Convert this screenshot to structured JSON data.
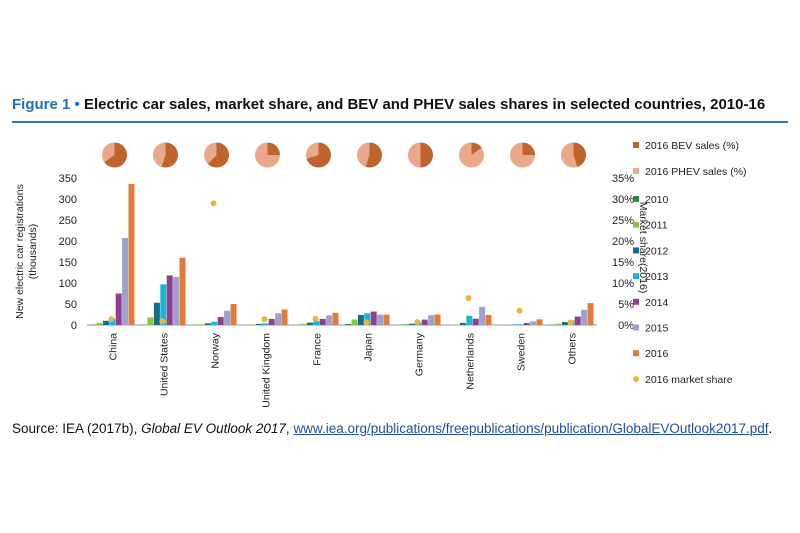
{
  "figure": {
    "label": "Figure 1",
    "bullet": "•",
    "title": "Electric car sales, market share, and BEV and PHEV sales shares in selected countries, 2010-16"
  },
  "source": {
    "prefix": "Source: IEA (2017b), ",
    "book": "Global EV Outlook 2017",
    "sep": ", ",
    "url": "www.iea.org/publications/freepublications/publication/GlobalEVOutlook2017.pdf",
    "end": "."
  },
  "chart_data": {
    "type": "bar",
    "categories": [
      "China",
      "United States",
      "Norway",
      "United Kingdom",
      "France",
      "Japan",
      "Germany",
      "Netherlands",
      "Sweden",
      "Others"
    ],
    "ylabel": "New electric car registrations (thousands)",
    "y2label": "Market share(2016)",
    "ylim": [
      0,
      350
    ],
    "yticks": [
      "0",
      "50",
      "100",
      "150",
      "200",
      "250",
      "300",
      "350"
    ],
    "y2lim": [
      0,
      35
    ],
    "y2ticks": [
      "0%",
      "5%",
      "10%",
      "15%",
      "20%",
      "25%",
      "30%",
      "35%"
    ],
    "grid": false,
    "legend_position": "right",
    "series": [
      {
        "name": "2010",
        "color": "#2e8b3e",
        "values": [
          1,
          1,
          0.4,
          0.2,
          0.2,
          2.5,
          0.5,
          0.1,
          0.1,
          1
        ]
      },
      {
        "name": "2011",
        "color": "#8cc63f",
        "values": [
          5,
          18,
          1.8,
          1.2,
          2.6,
          13,
          2.2,
          0.9,
          0.2,
          3
        ]
      },
      {
        "name": "2012",
        "color": "#1a6a8a",
        "values": [
          10,
          53,
          4,
          2.5,
          5.7,
          24,
          3,
          5,
          0.9,
          7
        ]
      },
      {
        "name": "2013",
        "color": "#17b6d6",
        "values": [
          15,
          97,
          8,
          3.8,
          9,
          28,
          6,
          22,
          1.6,
          11
        ]
      },
      {
        "name": "2014",
        "color": "#8e3f8e",
        "values": [
          75,
          118,
          19,
          14.5,
          14.5,
          32,
          12.8,
          15,
          4.7,
          20
        ]
      },
      {
        "name": "2015",
        "color": "#9ea0d2",
        "values": [
          207,
          114,
          34,
          28,
          22.9,
          24.6,
          23.5,
          43,
          8.6,
          36
        ]
      },
      {
        "name": "2016",
        "color": "#e07b3a",
        "values": [
          336,
          160,
          50,
          37,
          29,
          24.8,
          25,
          24,
          13.4,
          52
        ]
      }
    ],
    "market_share": {
      "name": "2016 market share",
      "color": "#e8b83a",
      "values_percent": [
        1.4,
        0.9,
        29,
        1.4,
        1.5,
        0.6,
        0.7,
        6.4,
        3.4,
        0.6
      ]
    },
    "pies": {
      "bev_name": "2016 BEV sales (%)",
      "bev_color": "#c0642e",
      "phev_name": "2016 PHEV sales (%)",
      "phev_color": "#eaa98a",
      "bev_percent": [
        65,
        55,
        62,
        25,
        70,
        55,
        50,
        15,
        25,
        45
      ]
    }
  }
}
